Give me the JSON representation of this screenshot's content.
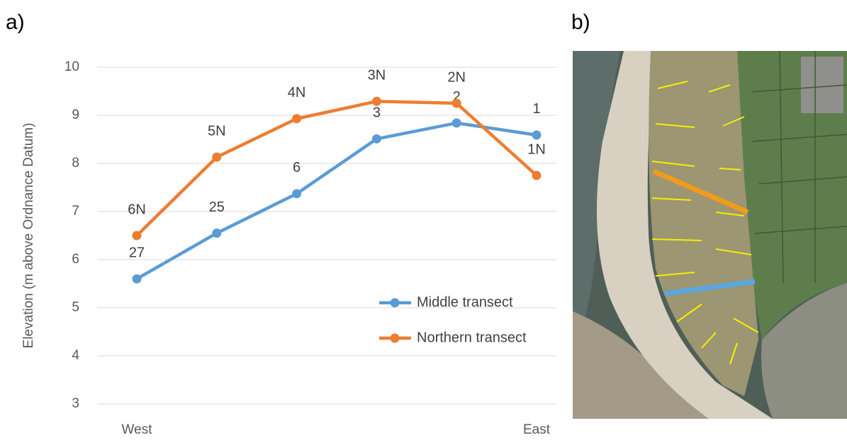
{
  "panel_labels": [
    "a)",
    "b)"
  ],
  "chart_data": {
    "type": "line",
    "y_label": "Elevation (m above Ordnance Datum)",
    "categories": [
      "West",
      null,
      null,
      null,
      null,
      "East"
    ],
    "series": [
      {
        "name": "Middle transect",
        "color": "#5b9bd5",
        "values": [
          5.6,
          6.55,
          7.37,
          8.51,
          8.84,
          8.59
        ],
        "point_labels": [
          "27",
          "25",
          "6",
          "3",
          "2",
          "1"
        ]
      },
      {
        "name": "Northern transect",
        "color": "#ed7d31",
        "values": [
          6.5,
          8.13,
          8.93,
          9.29,
          9.25,
          7.75
        ],
        "point_labels": [
          "6N",
          "5N",
          "4N",
          "3N",
          "2N",
          "1N"
        ]
      }
    ],
    "ylim": [
      3,
      10
    ],
    "yticks": [
      3,
      4,
      5,
      6,
      7,
      8,
      9,
      10
    ],
    "grid": true
  }
}
